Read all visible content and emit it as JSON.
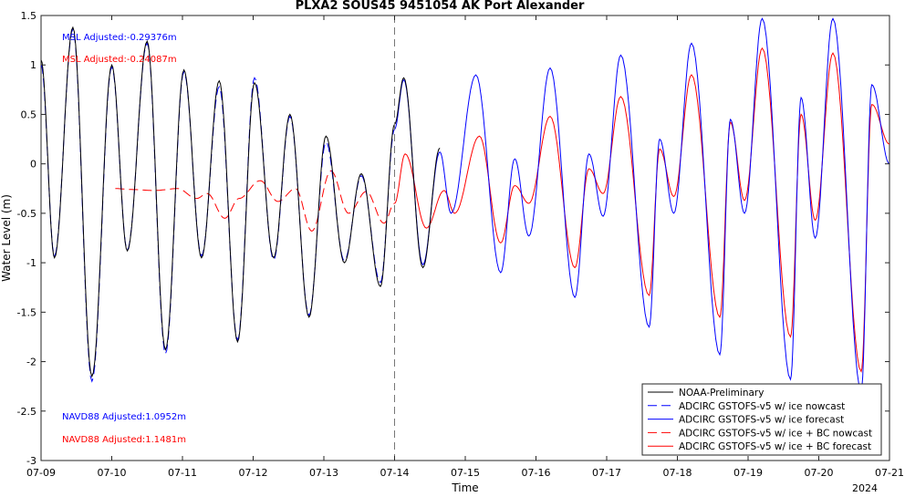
{
  "chart_data": {
    "type": "line",
    "title": "PLXA2 SOUS45 9451054 AK Port Alexander",
    "xlabel": "Time",
    "ylabel": "Water Level (m)",
    "ylim": [
      -3,
      1.5
    ],
    "xlim": [
      0,
      12
    ],
    "x_tick_labels": [
      "07-09",
      "07-10",
      "07-11",
      "07-12",
      "07-13",
      "07-14",
      "07-15",
      "07-16",
      "07-17",
      "07-18",
      "07-19",
      "07-20",
      "07-21"
    ],
    "x_year_label": "2024",
    "y_ticks": [
      -3,
      -2.5,
      -2,
      -1.5,
      -1,
      -0.5,
      0,
      0.5,
      1,
      1.5
    ],
    "y_tick_labels": [
      "-3",
      "-2.5",
      "-2",
      "-1.5",
      "-1",
      "-0.5",
      "0",
      "0.5",
      "1",
      "1.5"
    ],
    "nowcast_forecast_divider_x": 5,
    "annotations": [
      {
        "text": "MSL Adjusted:-0.29376m",
        "color": "#0000ff"
      },
      {
        "text": "MSL Adjusted:-0.24087m",
        "color": "#ff0000"
      },
      {
        "text": "NAVD88 Adjusted:1.0952m",
        "color": "#0000ff"
      },
      {
        "text": "NAVD88 Adjusted:1.1481m",
        "color": "#ff0000"
      }
    ],
    "legend_placement": "bottom-right",
    "series": [
      {
        "name": "NOAA-Preliminary",
        "color": "#000000",
        "dash": "solid",
        "extrema": [
          [
            0.0,
            1.05
          ],
          [
            0.19,
            -0.95
          ],
          [
            0.45,
            1.38
          ],
          [
            0.72,
            -2.15
          ],
          [
            1.0,
            1.0
          ],
          [
            1.22,
            -0.88
          ],
          [
            1.5,
            1.24
          ],
          [
            1.76,
            -1.88
          ],
          [
            2.02,
            0.95
          ],
          [
            2.27,
            -0.95
          ],
          [
            2.52,
            0.84
          ],
          [
            2.78,
            -1.8
          ],
          [
            3.02,
            0.82
          ],
          [
            3.29,
            -0.95
          ],
          [
            3.52,
            0.5
          ],
          [
            3.79,
            -1.55
          ],
          [
            4.03,
            0.28
          ],
          [
            4.29,
            -1.0
          ],
          [
            4.53,
            -0.1
          ],
          [
            4.8,
            -1.24
          ],
          [
            5.0,
            0.4
          ],
          [
            5.13,
            0.87
          ],
          [
            5.4,
            -1.05
          ],
          [
            5.64,
            0.16
          ]
        ]
      },
      {
        "name": "ADCIRC GSTOFS-v5 w/ ice nowcast",
        "color": "#0000ff",
        "dash": "long-dash",
        "extrema": [
          [
            0.0,
            1.0
          ],
          [
            0.19,
            -0.93
          ],
          [
            0.45,
            1.36
          ],
          [
            0.72,
            -2.2
          ],
          [
            1.0,
            0.98
          ],
          [
            1.22,
            -0.87
          ],
          [
            1.5,
            1.22
          ],
          [
            1.76,
            -1.92
          ],
          [
            2.02,
            0.93
          ],
          [
            2.27,
            -0.93
          ],
          [
            2.52,
            0.78
          ],
          [
            2.78,
            -1.78
          ],
          [
            3.02,
            0.87
          ],
          [
            3.29,
            -0.97
          ],
          [
            3.52,
            0.48
          ],
          [
            3.79,
            -1.53
          ],
          [
            4.03,
            0.22
          ],
          [
            4.29,
            -0.98
          ],
          [
            4.53,
            -0.12
          ],
          [
            4.8,
            -1.2
          ],
          [
            5.0,
            0.35
          ]
        ]
      },
      {
        "name": "ADCIRC GSTOFS-v5 w/ ice forecast",
        "color": "#0000ff",
        "dash": "solid",
        "extrema": [
          [
            5.0,
            0.35
          ],
          [
            5.13,
            0.85
          ],
          [
            5.4,
            -1.02
          ],
          [
            5.64,
            0.12
          ],
          [
            5.8,
            -0.5
          ],
          [
            6.15,
            0.9
          ],
          [
            6.5,
            -1.1
          ],
          [
            6.7,
            0.05
          ],
          [
            6.9,
            -0.73
          ],
          [
            7.2,
            0.97
          ],
          [
            7.55,
            -1.35
          ],
          [
            7.75,
            0.1
          ],
          [
            7.95,
            -0.53
          ],
          [
            8.2,
            1.1
          ],
          [
            8.6,
            -1.65
          ],
          [
            8.75,
            0.25
          ],
          [
            8.95,
            -0.5
          ],
          [
            9.2,
            1.22
          ],
          [
            9.6,
            -1.93
          ],
          [
            9.75,
            0.45
          ],
          [
            9.95,
            -0.5
          ],
          [
            10.2,
            1.47
          ],
          [
            10.6,
            -2.18
          ],
          [
            10.75,
            0.67
          ],
          [
            10.95,
            -0.75
          ],
          [
            11.2,
            1.47
          ],
          [
            11.6,
            -2.3
          ],
          [
            11.75,
            0.8
          ],
          [
            12.0,
            0.0
          ]
        ]
      },
      {
        "name": "ADCIRC GSTOFS-v5 w/ ice + BC nowcast",
        "color": "#ff0000",
        "dash": "long-dash",
        "extrema": [
          [
            1.05,
            -0.25
          ],
          [
            1.3,
            -0.26
          ],
          [
            1.6,
            -0.27
          ],
          [
            1.93,
            -0.25
          ],
          [
            2.2,
            -0.35
          ],
          [
            2.35,
            -0.3
          ],
          [
            2.6,
            -0.55
          ],
          [
            2.8,
            -0.35
          ],
          [
            3.1,
            -0.17
          ],
          [
            3.35,
            -0.38
          ],
          [
            3.6,
            -0.25
          ],
          [
            3.83,
            -0.68
          ],
          [
            4.1,
            -0.07
          ],
          [
            4.35,
            -0.5
          ],
          [
            4.6,
            -0.28
          ],
          [
            4.85,
            -0.6
          ],
          [
            5.0,
            -0.4
          ]
        ]
      },
      {
        "name": "ADCIRC GSTOFS-v5 w/ ice + BC forecast",
        "color": "#ff0000",
        "dash": "solid",
        "extrema": [
          [
            5.0,
            -0.4
          ],
          [
            5.15,
            0.1
          ],
          [
            5.45,
            -0.65
          ],
          [
            5.7,
            -0.27
          ],
          [
            5.85,
            -0.5
          ],
          [
            6.2,
            0.28
          ],
          [
            6.5,
            -0.8
          ],
          [
            6.7,
            -0.22
          ],
          [
            6.9,
            -0.4
          ],
          [
            7.2,
            0.48
          ],
          [
            7.55,
            -1.05
          ],
          [
            7.75,
            -0.05
          ],
          [
            7.95,
            -0.3
          ],
          [
            8.2,
            0.68
          ],
          [
            8.6,
            -1.33
          ],
          [
            8.75,
            0.15
          ],
          [
            8.95,
            -0.33
          ],
          [
            9.2,
            0.9
          ],
          [
            9.6,
            -1.55
          ],
          [
            9.75,
            0.42
          ],
          [
            9.95,
            -0.37
          ],
          [
            10.2,
            1.17
          ],
          [
            10.6,
            -1.75
          ],
          [
            10.75,
            0.5
          ],
          [
            10.95,
            -0.57
          ],
          [
            11.2,
            1.12
          ],
          [
            11.6,
            -2.1
          ],
          [
            11.75,
            0.6
          ],
          [
            12.0,
            0.2
          ]
        ]
      }
    ]
  }
}
